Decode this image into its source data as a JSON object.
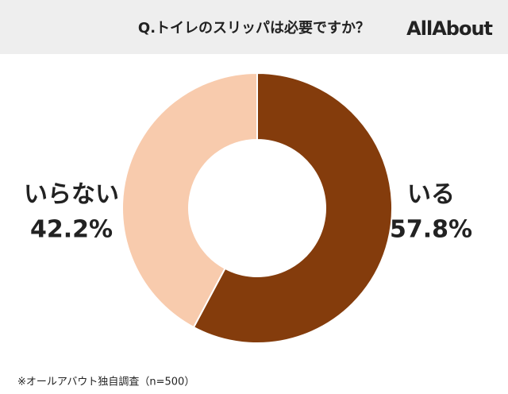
{
  "chart_data": {
    "type": "pie",
    "title": "Q.トイレのスリッパは必要ですか？",
    "logo": "AllAbout",
    "categories": [
      "いる",
      "いらない"
    ],
    "values": [
      57.8,
      42.2
    ],
    "value_labels": [
      "57.8%",
      "42.2%"
    ],
    "colors": [
      "#843c0c",
      "#f8cbad"
    ],
    "note": "※オールアバウト独自調査（n=500）"
  }
}
